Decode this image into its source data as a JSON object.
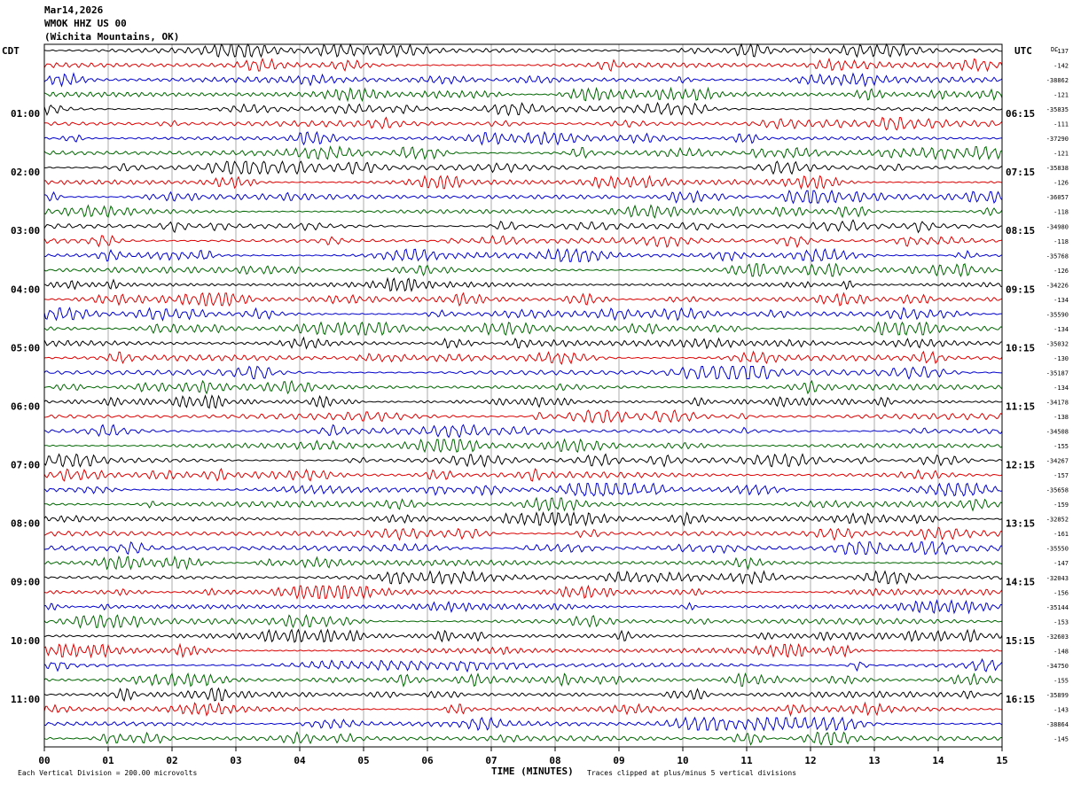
{
  "header": {
    "date": "Mar14,2026",
    "station": "WMOK HHZ US 00",
    "location": "(Wichita Mountains, OK)",
    "left_zone": "CDT",
    "right_zone": "UTC",
    "dc_label": "DC"
  },
  "footer": {
    "scale_note": "Each Vertical Division =  200.00 microvolts",
    "clip_note": "Traces clipped at plus/minus 5 vertical divisions"
  },
  "colors": {
    "trace_cycle": [
      "#000000",
      "#dd0000",
      "#0000cc",
      "#006600"
    ],
    "grid": "#888888",
    "frame": "#000000"
  },
  "chart_data": {
    "type": "line",
    "title": "",
    "xlabel": "TIME (MINUTES)",
    "ylabel": "",
    "xlim": [
      0,
      15
    ],
    "x_ticks": [
      "00",
      "01",
      "02",
      "03",
      "04",
      "05",
      "06",
      "07",
      "08",
      "09",
      "10",
      "11",
      "12",
      "13",
      "14",
      "15"
    ],
    "trace_count": 48,
    "trace_minutes": 15,
    "grid": true,
    "left_hour_labels": [
      "01:00",
      "02:00",
      "03:00",
      "04:00",
      "05:00",
      "06:00",
      "07:00",
      "08:00",
      "09:00",
      "10:00",
      "11:00"
    ],
    "right_hour_labels": [
      "06:15",
      "07:15",
      "08:15",
      "09:15",
      "10:15",
      "11:15",
      "12:15",
      "13:15",
      "14:15",
      "15:15",
      "16:15"
    ],
    "dc_offsets": [
      "-137",
      "-142",
      "-38862",
      "-121",
      "-35835",
      "-111",
      "-37290",
      "-121",
      "-35838",
      "-126",
      "-36057",
      "-118",
      "-34980",
      "-118",
      "-35768",
      "-126",
      "-34226",
      "-134",
      "-35590",
      "-134",
      "-35032",
      "-130",
      "-35187",
      "-134",
      "-34178",
      "-138",
      "-34508",
      "-155",
      "-34267",
      "-157",
      "-35658",
      "-159",
      "-32852",
      "-161",
      "-35550",
      "-147",
      "-32043",
      "-156",
      "-35144",
      "-153",
      "-32603",
      "-148",
      "-34750",
      "-155",
      "-35899",
      "-143",
      "-38864",
      "-145"
    ]
  }
}
